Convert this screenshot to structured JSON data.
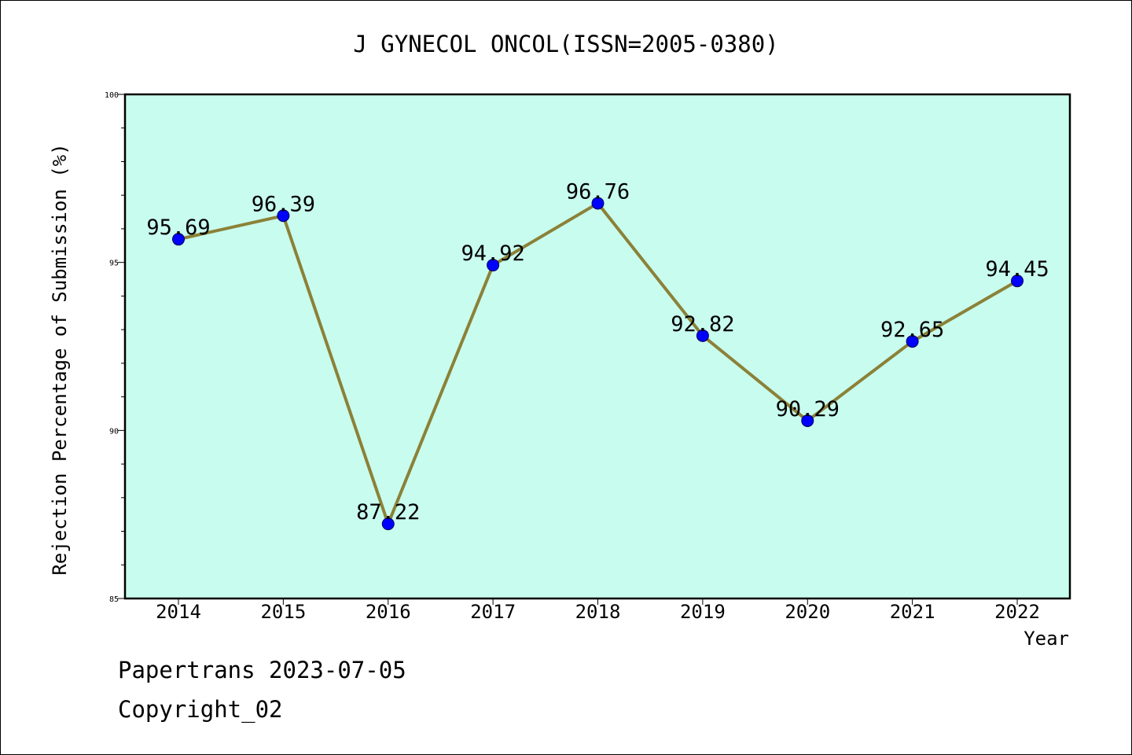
{
  "chart_data": {
    "type": "line",
    "title": "J GYNECOL ONCOL(ISSN=2005-0380)",
    "xlabel": "Year",
    "ylabel": "Rejection Percentage of Submission (%)",
    "categories": [
      "2014",
      "2015",
      "2016",
      "2017",
      "2018",
      "2019",
      "2020",
      "2021",
      "2022"
    ],
    "series": [
      {
        "values": [
          95.69,
          96.39,
          87.22,
          94.92,
          96.76,
          92.82,
          90.29,
          92.65,
          94.45
        ]
      }
    ],
    "data_labels": [
      "95.69",
      "96.39",
      "87.22",
      "94.92",
      "96.76",
      "92.82",
      "90.29",
      "92.65",
      "94.45"
    ],
    "ylim": [
      85,
      100
    ],
    "yticks": [
      85,
      90,
      95,
      100
    ],
    "y_minor_step": 1,
    "grid": false,
    "colors": {
      "plot_background": "#c8fcee",
      "line": "#8b8138",
      "marker": "#0000ff",
      "axis": "#000000"
    }
  },
  "footer": {
    "line1": "Papertrans 2023-07-05",
    "line2": "Copyright_02"
  }
}
